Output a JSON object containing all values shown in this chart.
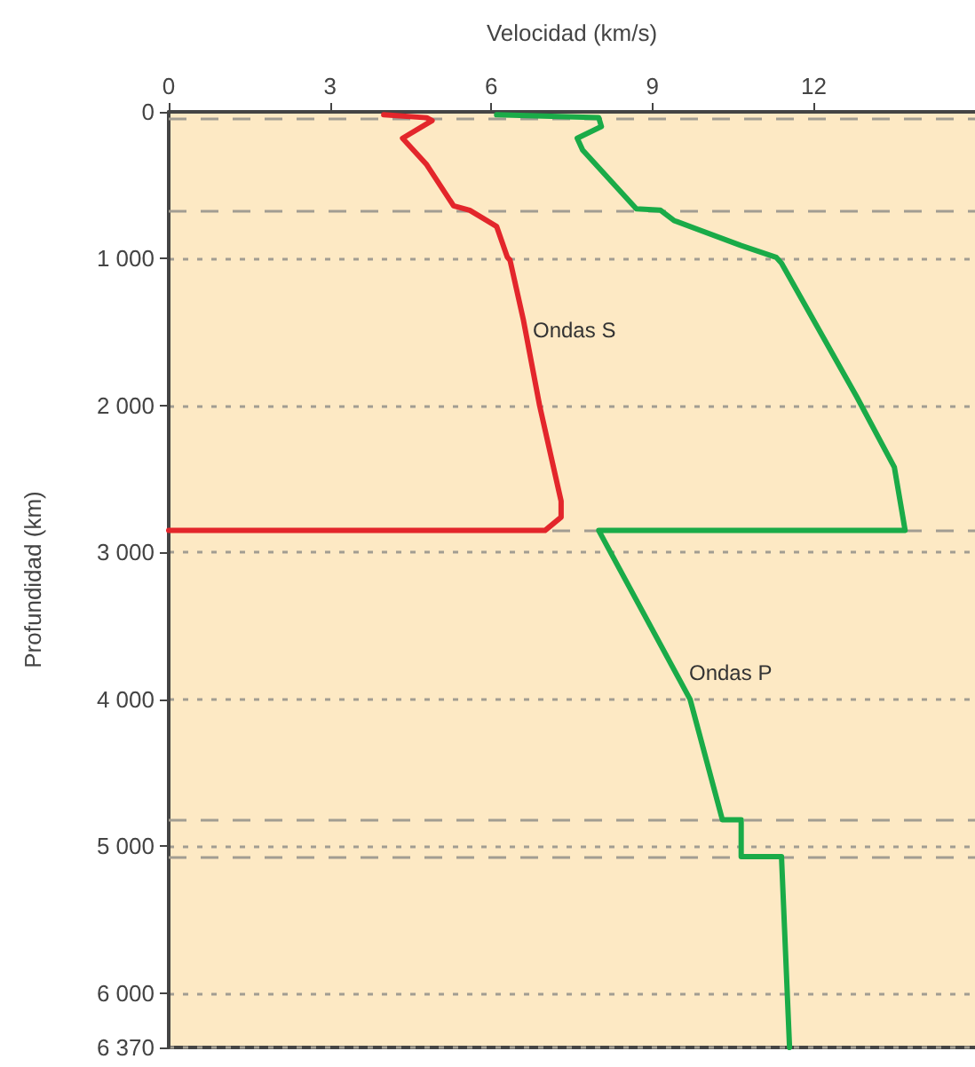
{
  "chart_data": {
    "type": "line",
    "xlabel": "Velocidad (km/s)",
    "ylabel": "Profundidad (km)",
    "xlim": [
      0,
      15
    ],
    "xticks": [
      0,
      3,
      6,
      9,
      12
    ],
    "ylim": [
      6370,
      0
    ],
    "yticks": [
      0,
      {
        "value": 1000,
        "label": "1 000"
      },
      {
        "value": 2000,
        "label": "2 000"
      },
      {
        "value": 3000,
        "label": "3 000"
      },
      {
        "value": 4000,
        "label": "4 000"
      },
      {
        "value": 5000,
        "label": "5 000"
      },
      {
        "value": 6000,
        "label": "6 000"
      },
      {
        "value": 6370,
        "label": "6 370"
      }
    ],
    "series": [
      {
        "color": "#e3262b",
        "x": [
          4.0,
          4.8,
          4.9,
          4.35,
          4.6,
          4.8,
          5.3,
          5.6,
          6.1,
          6.3,
          6.35,
          6.6,
          6.9,
          7.3,
          7.3,
          7.0,
          0
        ],
        "values": [
          20,
          40,
          60,
          180,
          280,
          360,
          640,
          670,
          780,
          990,
          1010,
          1420,
          2000,
          2650,
          2760,
          2850,
          2850
        ]
      },
      {
        "color": "#1aab48",
        "x": [
          6.1,
          8.0,
          8.05,
          7.6,
          7.7,
          8.7,
          9.15,
          9.4,
          10.65,
          11.3,
          11.4,
          12.8,
          13.5,
          13.7,
          8.0,
          9.7,
          10.3,
          10.65,
          10.65,
          11.4,
          11.55
        ],
        "values": [
          20,
          40,
          100,
          180,
          260,
          660,
          670,
          740,
          910,
          990,
          1030,
          1940,
          2420,
          2850,
          2850,
          4000,
          4820,
          4820,
          5070,
          5070,
          6370
        ]
      }
    ],
    "annotations": [
      "Ondas S",
      "Ondas P"
    ],
    "ref_lines": [
      {
        "axis": "y",
        "value": 40,
        "color": "#a29d92",
        "line_style": "dashed"
      },
      {
        "axis": "y",
        "value": 670,
        "color": "#a29d92",
        "line_style": "dashed"
      },
      {
        "axis": "y",
        "value": 2850,
        "color": "#a29d92",
        "line_style": "dashed"
      },
      {
        "axis": "y",
        "value": 4820,
        "color": "#a29d92",
        "line_style": "dashed"
      },
      {
        "axis": "y",
        "value": 5070,
        "color": "#a29d92",
        "line_style": "dashed"
      }
    ],
    "grid": "y",
    "marker": "none",
    "line_style": "solid"
  }
}
